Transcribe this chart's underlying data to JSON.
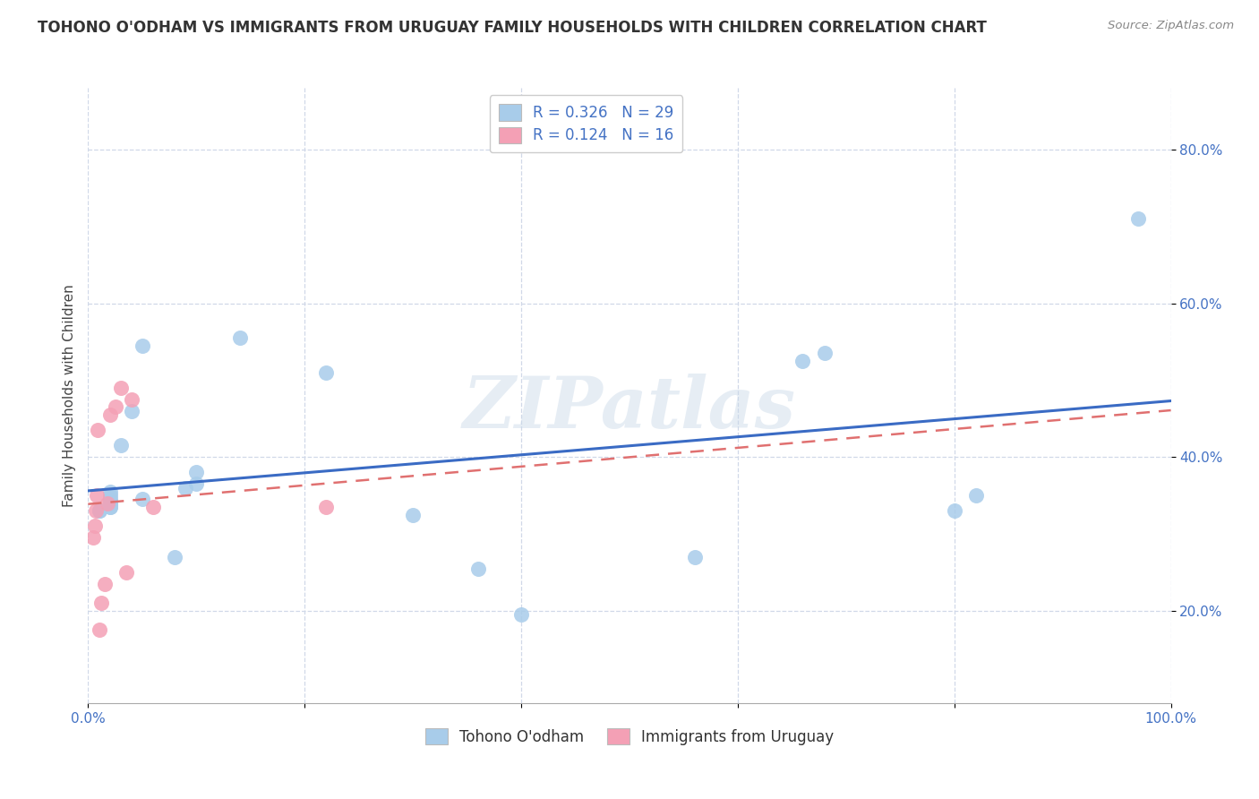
{
  "title": "TOHONO O'ODHAM VS IMMIGRANTS FROM URUGUAY FAMILY HOUSEHOLDS WITH CHILDREN CORRELATION CHART",
  "source": "Source: ZipAtlas.com",
  "ylabel": "Family Households with Children",
  "xlim": [
    0.0,
    1.0
  ],
  "ylim": [
    0.08,
    0.88
  ],
  "yticks": [
    0.2,
    0.4,
    0.6,
    0.8
  ],
  "xticks": [
    0.0,
    0.2,
    0.4,
    0.6,
    0.8,
    1.0
  ],
  "xticklabels": [
    "0.0%",
    "",
    "",
    "",
    "",
    "100.0%"
  ],
  "series1_label": "Tohono O'odham",
  "series1_R": 0.326,
  "series1_N": 29,
  "series1_color": "#A8CCEA",
  "series1_x": [
    0.01,
    0.01,
    0.02,
    0.02,
    0.02,
    0.02,
    0.02,
    0.02,
    0.02,
    0.02,
    0.03,
    0.04,
    0.05,
    0.05,
    0.08,
    0.09,
    0.1,
    0.1,
    0.14,
    0.22,
    0.3,
    0.36,
    0.4,
    0.56,
    0.66,
    0.68,
    0.8,
    0.82,
    0.97
  ],
  "series1_y": [
    0.33,
    0.33,
    0.335,
    0.34,
    0.335,
    0.34,
    0.342,
    0.345,
    0.35,
    0.355,
    0.415,
    0.46,
    0.545,
    0.345,
    0.27,
    0.36,
    0.365,
    0.38,
    0.555,
    0.51,
    0.325,
    0.255,
    0.195,
    0.27,
    0.525,
    0.535,
    0.33,
    0.35,
    0.71
  ],
  "series2_label": "Immigrants from Uruguay",
  "series2_R": 0.124,
  "series2_N": 16,
  "series2_color": "#F4A0B5",
  "series2_x": [
    0.005,
    0.006,
    0.007,
    0.008,
    0.009,
    0.01,
    0.012,
    0.015,
    0.018,
    0.02,
    0.025,
    0.03,
    0.035,
    0.04,
    0.06,
    0.22
  ],
  "series2_y": [
    0.295,
    0.31,
    0.33,
    0.35,
    0.435,
    0.175,
    0.21,
    0.235,
    0.34,
    0.455,
    0.465,
    0.49,
    0.25,
    0.475,
    0.335,
    0.335
  ],
  "trend1_color": "#3A6BC4",
  "trend2_color": "#E07070",
  "trend2_dashed": true,
  "background_color": "#FFFFFF",
  "grid_color": "#D0D8E8",
  "watermark": "ZIPatlas",
  "title_fontsize": 12,
  "axis_label_fontsize": 11,
  "tick_fontsize": 11,
  "legend_fontsize": 12
}
